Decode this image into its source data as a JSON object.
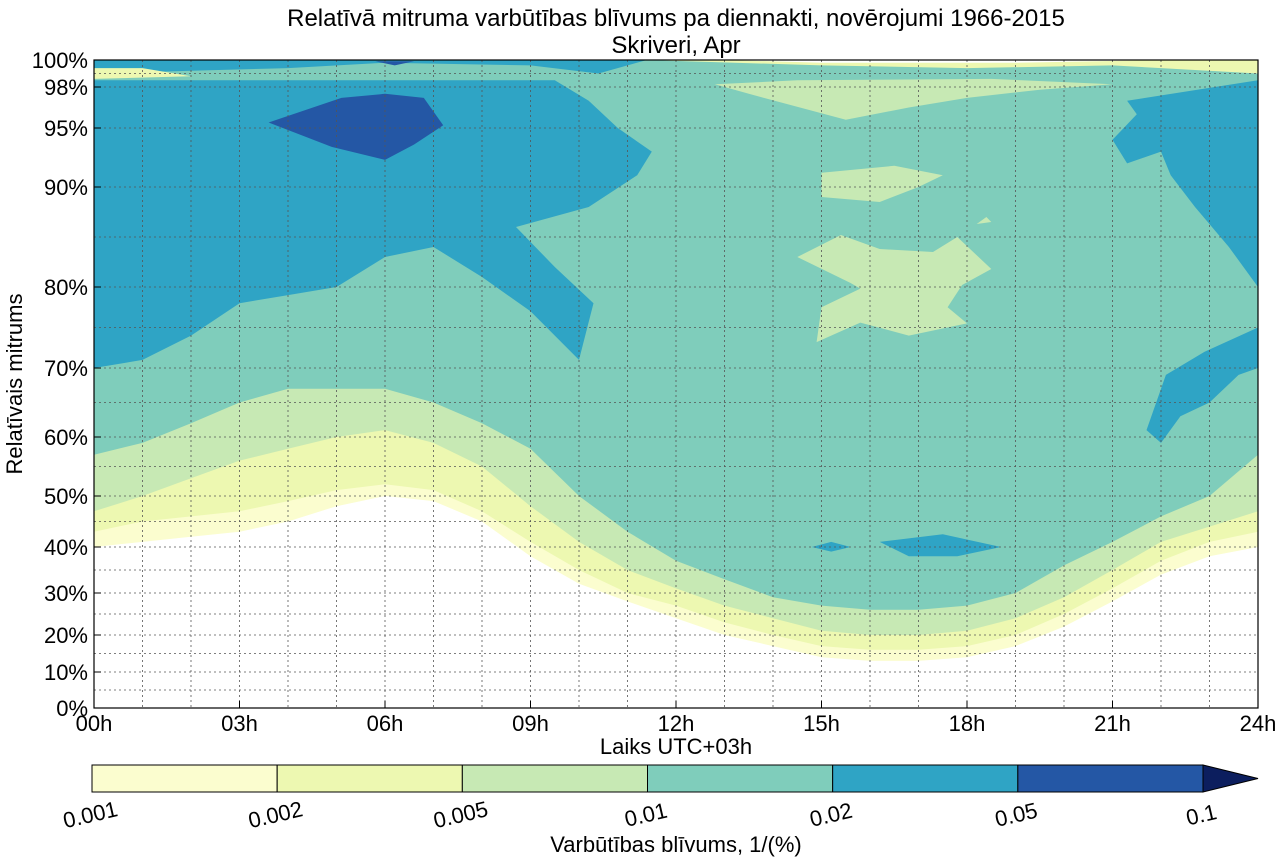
{
  "chart_data": {
    "type": "contour",
    "title": "Relatīvā mitruma varbūtības blīvums pa diennakti, novērojumi 1966-2015",
    "subtitle": "Skriveri, Apr",
    "xlabel": "Laiks UTC+03h",
    "ylabel": "Relatīvais mitrums",
    "x_unit": "hour",
    "xlim": [
      0,
      24
    ],
    "y_scale": "nonlinear",
    "ylim": [
      0,
      100
    ],
    "x_ticks": [
      0,
      3,
      6,
      9,
      12,
      15,
      18,
      21,
      24
    ],
    "x_tick_labels": [
      "00h",
      "03h",
      "06h",
      "09h",
      "12h",
      "15h",
      "18h",
      "21h",
      "24h"
    ],
    "y_ticks": [
      0,
      10,
      20,
      30,
      40,
      50,
      60,
      70,
      80,
      90,
      95,
      98,
      100
    ],
    "y_tick_labels": [
      "0%",
      "10%",
      "20%",
      "30%",
      "40%",
      "50%",
      "60%",
      "70%",
      "80%",
      "90%",
      "95%",
      "98%",
      "100%"
    ],
    "grid": true,
    "levels": [
      0.001,
      0.002,
      0.005,
      0.01,
      0.02,
      0.05,
      0.1
    ],
    "level_colors": [
      "#fbfdcf",
      "#edf8b1",
      "#c7e9b4",
      "#7fcdbb",
      "#2fa4c5",
      "#2457a5",
      "#0c1e5e"
    ],
    "colorbar": {
      "label": "Varbūtības blīvums, 1/(%)",
      "tick_labels": [
        "0.001",
        "0.002",
        "0.005",
        "0.01",
        "0.02",
        "0.05",
        "0.1"
      ],
      "extend": "max",
      "placement": "bottom"
    },
    "bands": [
      {
        "level": "0.001-0.002",
        "hours": [
          0,
          1,
          2,
          3,
          4,
          5,
          6,
          7,
          8,
          9,
          10,
          11,
          12,
          13,
          14,
          15,
          16,
          17,
          18,
          19,
          20,
          21,
          22,
          23,
          24
        ],
        "lower": [
          40,
          41,
          42,
          43,
          45,
          48,
          50,
          49,
          45,
          38,
          32,
          28,
          24,
          20,
          17,
          14,
          13,
          13,
          14,
          17,
          22,
          28,
          34,
          38,
          40
        ]
      },
      {
        "level": "0.002-0.005",
        "hours": [
          0,
          1,
          2,
          3,
          4,
          5,
          6,
          7,
          8,
          9,
          10,
          11,
          12,
          13,
          14,
          15,
          16,
          17,
          18,
          19,
          20,
          21,
          22,
          23,
          24
        ],
        "lower": [
          43,
          45,
          46,
          47,
          49,
          51,
          52,
          51,
          47,
          41,
          35,
          30,
          27,
          23,
          20,
          17,
          16,
          16,
          17,
          20,
          25,
          31,
          37,
          41,
          43
        ]
      },
      {
        "level": "0.005-0.01",
        "hours": [
          0,
          1,
          2,
          3,
          4,
          5,
          6,
          7,
          8,
          9,
          10,
          11,
          12,
          13,
          14,
          15,
          16,
          17,
          18,
          19,
          20,
          21,
          22,
          23,
          24
        ],
        "lower": [
          47,
          50,
          53,
          56,
          58,
          60,
          61,
          59,
          55,
          48,
          41,
          35,
          31,
          27,
          24,
          21,
          20,
          20,
          21,
          24,
          29,
          35,
          41,
          44,
          47
        ]
      },
      {
        "level": "0.01-0.02",
        "hours": [
          0,
          1,
          2,
          3,
          4,
          5,
          6,
          7,
          8,
          9,
          10,
          11,
          12,
          13,
          14,
          15,
          16,
          17,
          18,
          19,
          20,
          21,
          22,
          23,
          24
        ],
        "lower": [
          57,
          59,
          62,
          65,
          67,
          67,
          67,
          65,
          62,
          58,
          50,
          43,
          37,
          33,
          29,
          27,
          26,
          26,
          27,
          30,
          36,
          41,
          46,
          50,
          57
        ]
      },
      {
        "level": "0.02-0.05",
        "hours": [
          0,
          1,
          2,
          3,
          4,
          5,
          6,
          7,
          8,
          9,
          10,
          11
        ],
        "lower": [
          70,
          71,
          74,
          78,
          79,
          80,
          83,
          84,
          81,
          77,
          71,
          87
        ]
      },
      {
        "level": "0.05-0.1",
        "hours": [
          3.6,
          6,
          7.2
        ],
        "lower": [
          93,
          92,
          93
        ]
      }
    ]
  }
}
